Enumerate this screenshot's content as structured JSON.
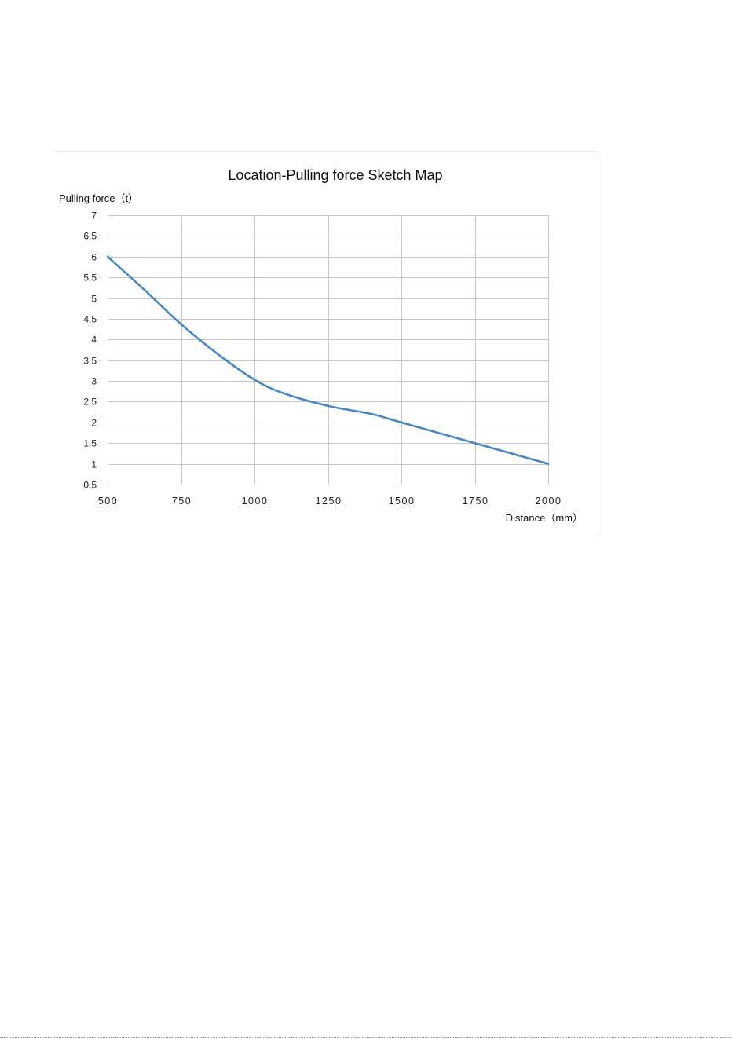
{
  "chart_data": {
    "type": "line",
    "title": "Location-Pulling force  Sketch Map",
    "xlabel": "Distance（mm）",
    "ylabel": "Pulling force（t）",
    "xlim": [
      500,
      2000
    ],
    "ylim": [
      0.5,
      7
    ],
    "x_ticks": [
      "500",
      "750",
      "1000",
      "1250",
      "1500",
      "1750",
      "2000"
    ],
    "y_ticks": [
      "7",
      "6.5",
      "6",
      "5.5",
      "5",
      "4.5",
      "4",
      "3.5",
      "3",
      "2.5",
      "2",
      "1.5",
      "1",
      "0.5"
    ],
    "grid": true,
    "legend": "none",
    "series": [
      {
        "color": "#4a86c5",
        "x": [
          500,
          625,
          750,
          875,
          1000,
          1100,
          1250,
          1400,
          1500,
          1750,
          2000
        ],
        "y": [
          6.0,
          5.2,
          4.37,
          3.65,
          3.03,
          2.7,
          2.4,
          2.2,
          2.0,
          1.5,
          1.0
        ]
      }
    ]
  }
}
